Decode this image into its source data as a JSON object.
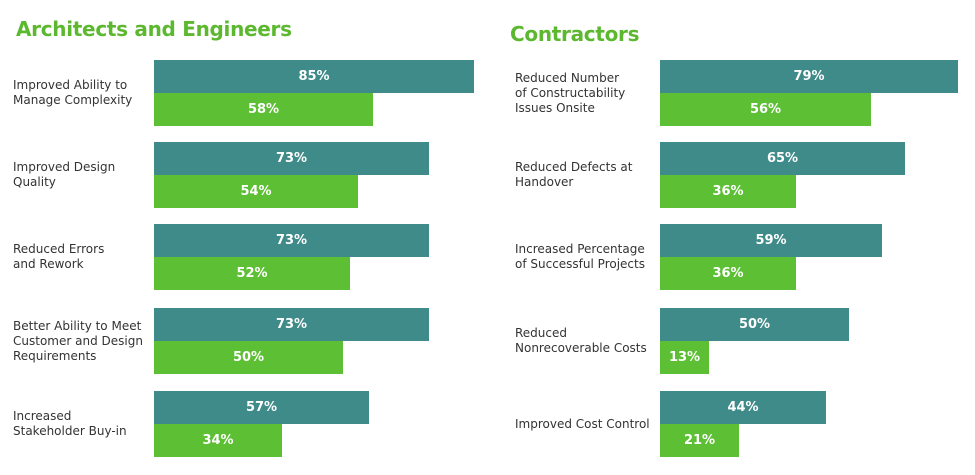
{
  "colors": {
    "title": "#5cb82e",
    "series_a": "#3f8b89",
    "series_b": "#5cbf34"
  },
  "chart_data": [
    {
      "type": "bar",
      "orientation": "horizontal",
      "title": "Architects and Engineers",
      "categories": [
        "Improved Ability to\nManage Complexity",
        "Improved Design\nQuality",
        "Reduced Errors\nand Rework",
        "Better Ability to Meet\nCustomer and Design\nRequirements",
        "Increased\nStakeholder Buy-in"
      ],
      "series": [
        {
          "values": [
            85,
            73,
            73,
            73,
            57
          ],
          "labels": [
            "85%",
            "73%",
            "73%",
            "73%",
            "57%"
          ]
        },
        {
          "values": [
            58,
            54,
            52,
            50,
            34
          ],
          "labels": [
            "58%",
            "54%",
            "52%",
            "50%",
            "34%"
          ]
        }
      ],
      "xlim": [
        0,
        100
      ]
    },
    {
      "type": "bar",
      "orientation": "horizontal",
      "title": "Contractors",
      "categories": [
        "Reduced Number\nof Constructability\nIssues Onsite",
        "Reduced Defects at\nHandover",
        "Increased Percentage\nof Successful Projects",
        "Reduced\nNonrecoverable Costs",
        "Improved Cost Control"
      ],
      "series": [
        {
          "values": [
            79,
            65,
            59,
            50,
            44
          ],
          "labels": [
            "79%",
            "65%",
            "59%",
            "50%",
            "44%"
          ]
        },
        {
          "values": [
            56,
            36,
            36,
            13,
            21
          ],
          "labels": [
            "56%",
            "36%",
            "36%",
            "13%",
            "21%"
          ]
        }
      ],
      "xlim": [
        0,
        100
      ]
    }
  ]
}
